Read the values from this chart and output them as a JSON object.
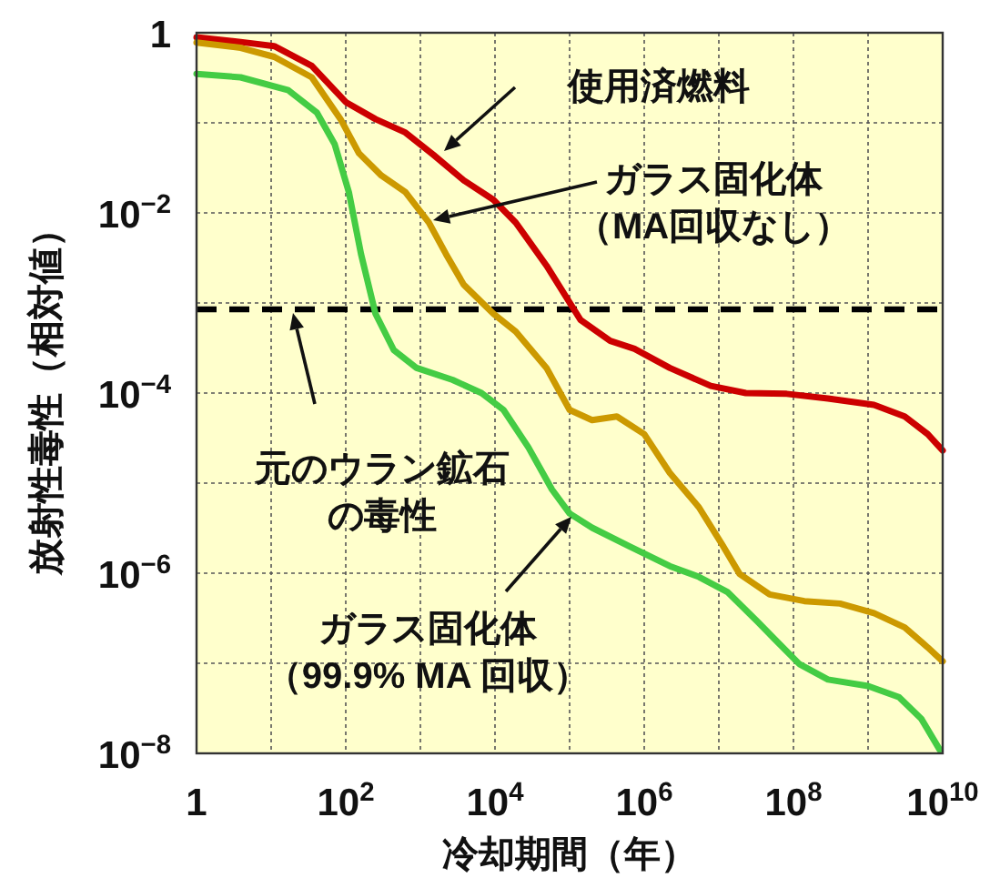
{
  "chart_data": {
    "type": "line",
    "xlabel": "冷却期間（年）",
    "ylabel": "放射性毒性（相対値）",
    "log": "xy",
    "grid": true,
    "xlim": [
      1,
      10000000000.0
    ],
    "ylim": [
      1e-08,
      1
    ],
    "xticks": [
      1,
      {
        "value": 10,
        "label": null
      },
      {
        "value": 100,
        "label": "10$^{2}$"
      },
      {
        "value": 1000.0,
        "label": null
      },
      {
        "value": 10000.0,
        "label": "10$^{4}$"
      },
      {
        "value": 100000.0,
        "label": null
      },
      {
        "value": 1000000.0,
        "label": "10$^{6}$"
      },
      {
        "value": 10000000.0,
        "label": null
      },
      {
        "value": 100000000.0,
        "label": "10$^{8}$"
      },
      {
        "value": 1000000000.0,
        "label": null
      },
      {
        "value": 10000000000.0,
        "label": "10$^{10}$"
      }
    ],
    "yticks": [
      {
        "value": 1e-08,
        "label": "10$^{−8}$"
      },
      {
        "value": 1e-07,
        "label": null
      },
      {
        "value": 1e-06,
        "label": "10$^{−6}$"
      },
      {
        "value": 1e-05,
        "label": null
      },
      {
        "value": 0.0001,
        "label": "10$^{−4}$"
      },
      {
        "value": 0.001,
        "label": null
      },
      {
        "value": 0.01,
        "label": "10$^{−2}$"
      },
      {
        "value": 0.1,
        "label": null
      },
      1
    ],
    "series": [
      {
        "color": "#cc0000",
        "x": [
          1,
          3.9,
          11,
          35,
          100,
          250,
          630,
          1500.0,
          3800.0,
          9500.0,
          19000.0,
          49000.0,
          140000.0,
          350000.0,
          740000.0,
          2200000.0,
          7800000.0,
          23000000.0,
          81000000.0,
          290000000.0,
          1200000000.0,
          3100000000.0,
          6300000000.0,
          10000000000.0
        ],
        "values": [
          0.89,
          0.79,
          0.71,
          0.43,
          0.17,
          0.11,
          0.078,
          0.044,
          0.023,
          0.014,
          0.0078,
          0.0026,
          0.00065,
          0.00038,
          0.00031,
          0.00019,
          0.00012,
          0.0001,
          9.8e-05,
          8.7e-05,
          7.4e-05,
          5.5e-05,
          3.5e-05,
          2.3e-05
        ]
      },
      {
        "color": "#cc9900",
        "x": [
          1,
          3.9,
          11,
          35,
          85,
          150,
          300,
          630,
          1300.0,
          2200.0,
          3800.0,
          9500.0,
          19000.0,
          49000.0,
          100000.0,
          200000.0,
          430000.0,
          1000000.0,
          2200000.0,
          5400000.0,
          11000000.0,
          19000000.0,
          48000000.0,
          140000000.0,
          420000000.0,
          1200000000.0,
          3100000000.0,
          6300000000.0,
          10000000000.0
        ],
        "values": [
          0.78,
          0.68,
          0.54,
          0.32,
          0.11,
          0.046,
          0.026,
          0.017,
          0.0078,
          0.0035,
          0.0016,
          0.00076,
          0.00048,
          0.00019,
          6.5e-05,
          5e-05,
          5.5e-05,
          3.5e-05,
          1.3e-05,
          5.4e-06,
          2.1e-06,
          9.8e-07,
          5.8e-07,
          4.9e-07,
          4.6e-07,
          3.6e-07,
          2.5e-07,
          1.5e-07,
          1.05e-07
        ]
      },
      {
        "color": "#44cc44",
        "x": [
          1,
          3.9,
          17,
          41,
          71,
          110,
          160,
          250,
          440,
          890,
          2700.0,
          6600.0,
          13000.0,
          28000.0,
          58000.0,
          100000.0,
          200000.0,
          620000.0,
          2200000.0,
          5400000.0,
          13000000.0,
          33000000.0,
          58000000.0,
          120000000.0,
          290000000.0,
          1000000000.0,
          2600000000.0,
          5200000000.0,
          9100000000.0
        ],
        "values": [
          0.35,
          0.32,
          0.23,
          0.13,
          0.058,
          0.017,
          0.0035,
          0.00076,
          0.0003,
          0.00019,
          0.00014,
          0.0001,
          6.5e-05,
          2.5e-05,
          8.5e-06,
          4.6e-06,
          3.2e-06,
          2e-06,
          1.2e-06,
          9.1e-07,
          6.2e-07,
          2.9e-07,
          1.8e-07,
          9.8e-08,
          6.6e-08,
          5.6e-08,
          4.2e-08,
          2.4e-08,
          1.1e-08
        ]
      }
    ],
    "ref_lines": [
      {
        "axis": "y",
        "value": 0.00085,
        "color": "#000000",
        "line_style": "dashed"
      }
    ],
    "annotations": [
      "使用済燃料",
      "ガラス固化体",
      "（MA回収なし）",
      "元のウラン鉱石",
      "の毒性",
      "ガラス固化体",
      "（99.9% MA 回収）"
    ]
  }
}
